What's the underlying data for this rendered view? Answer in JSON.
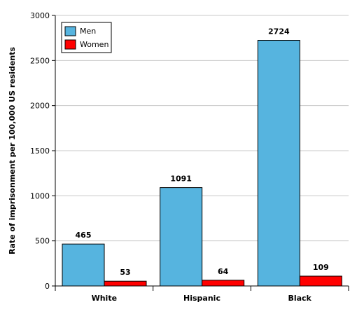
{
  "chart_data": {
    "type": "bar",
    "categories": [
      "White",
      "Hispanic",
      "Black"
    ],
    "series": [
      {
        "name": "Men",
        "values": [
          465,
          1091,
          2724
        ],
        "color": "#56b4df"
      },
      {
        "name": "Women",
        "values": [
          53,
          64,
          109
        ],
        "color": "#ff0000"
      }
    ],
    "title": "",
    "xlabel": "",
    "ylabel": "Rate of imprisonment per 100,000 US residents",
    "ylim": [
      0,
      3000
    ],
    "yticks": [
      0,
      500,
      1000,
      1500,
      2000,
      2500,
      3000
    ],
    "grid": true,
    "legend_position": "top-left",
    "data_labels": true
  }
}
